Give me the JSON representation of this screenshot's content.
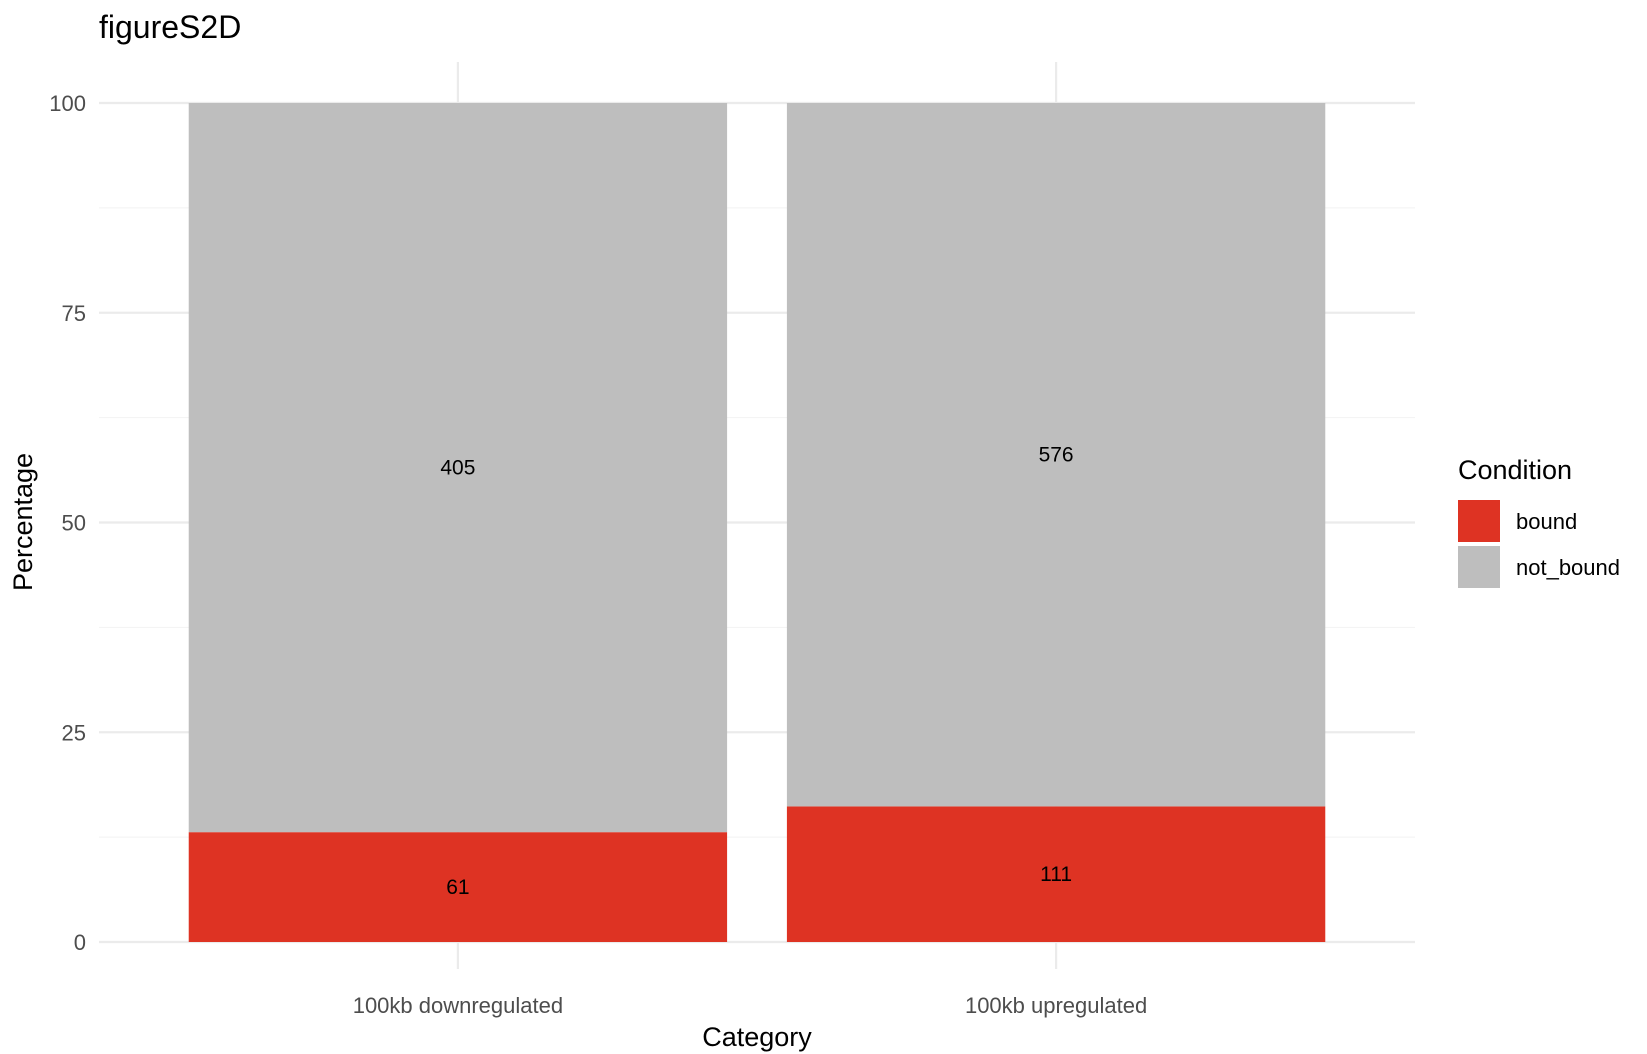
{
  "chart_data": {
    "type": "bar",
    "stacked": true,
    "title": "figureS2D",
    "xlabel": "Category",
    "ylabel": "Percentage",
    "ylim": [
      0,
      100
    ],
    "y_ticks": [
      0,
      25,
      50,
      75,
      100
    ],
    "categories": [
      "100kb downregulated",
      "100kb upregulated"
    ],
    "series": [
      {
        "name": "bound",
        "color": "#de3323",
        "values": [
          13.09,
          16.16
        ],
        "labels": [
          "61",
          "111"
        ]
      },
      {
        "name": "not_bound",
        "color": "#bebebe",
        "values": [
          86.91,
          83.84
        ],
        "labels": [
          "405",
          "576"
        ]
      }
    ],
    "legend": {
      "title": "Condition",
      "position": "right"
    },
    "grid": true
  }
}
